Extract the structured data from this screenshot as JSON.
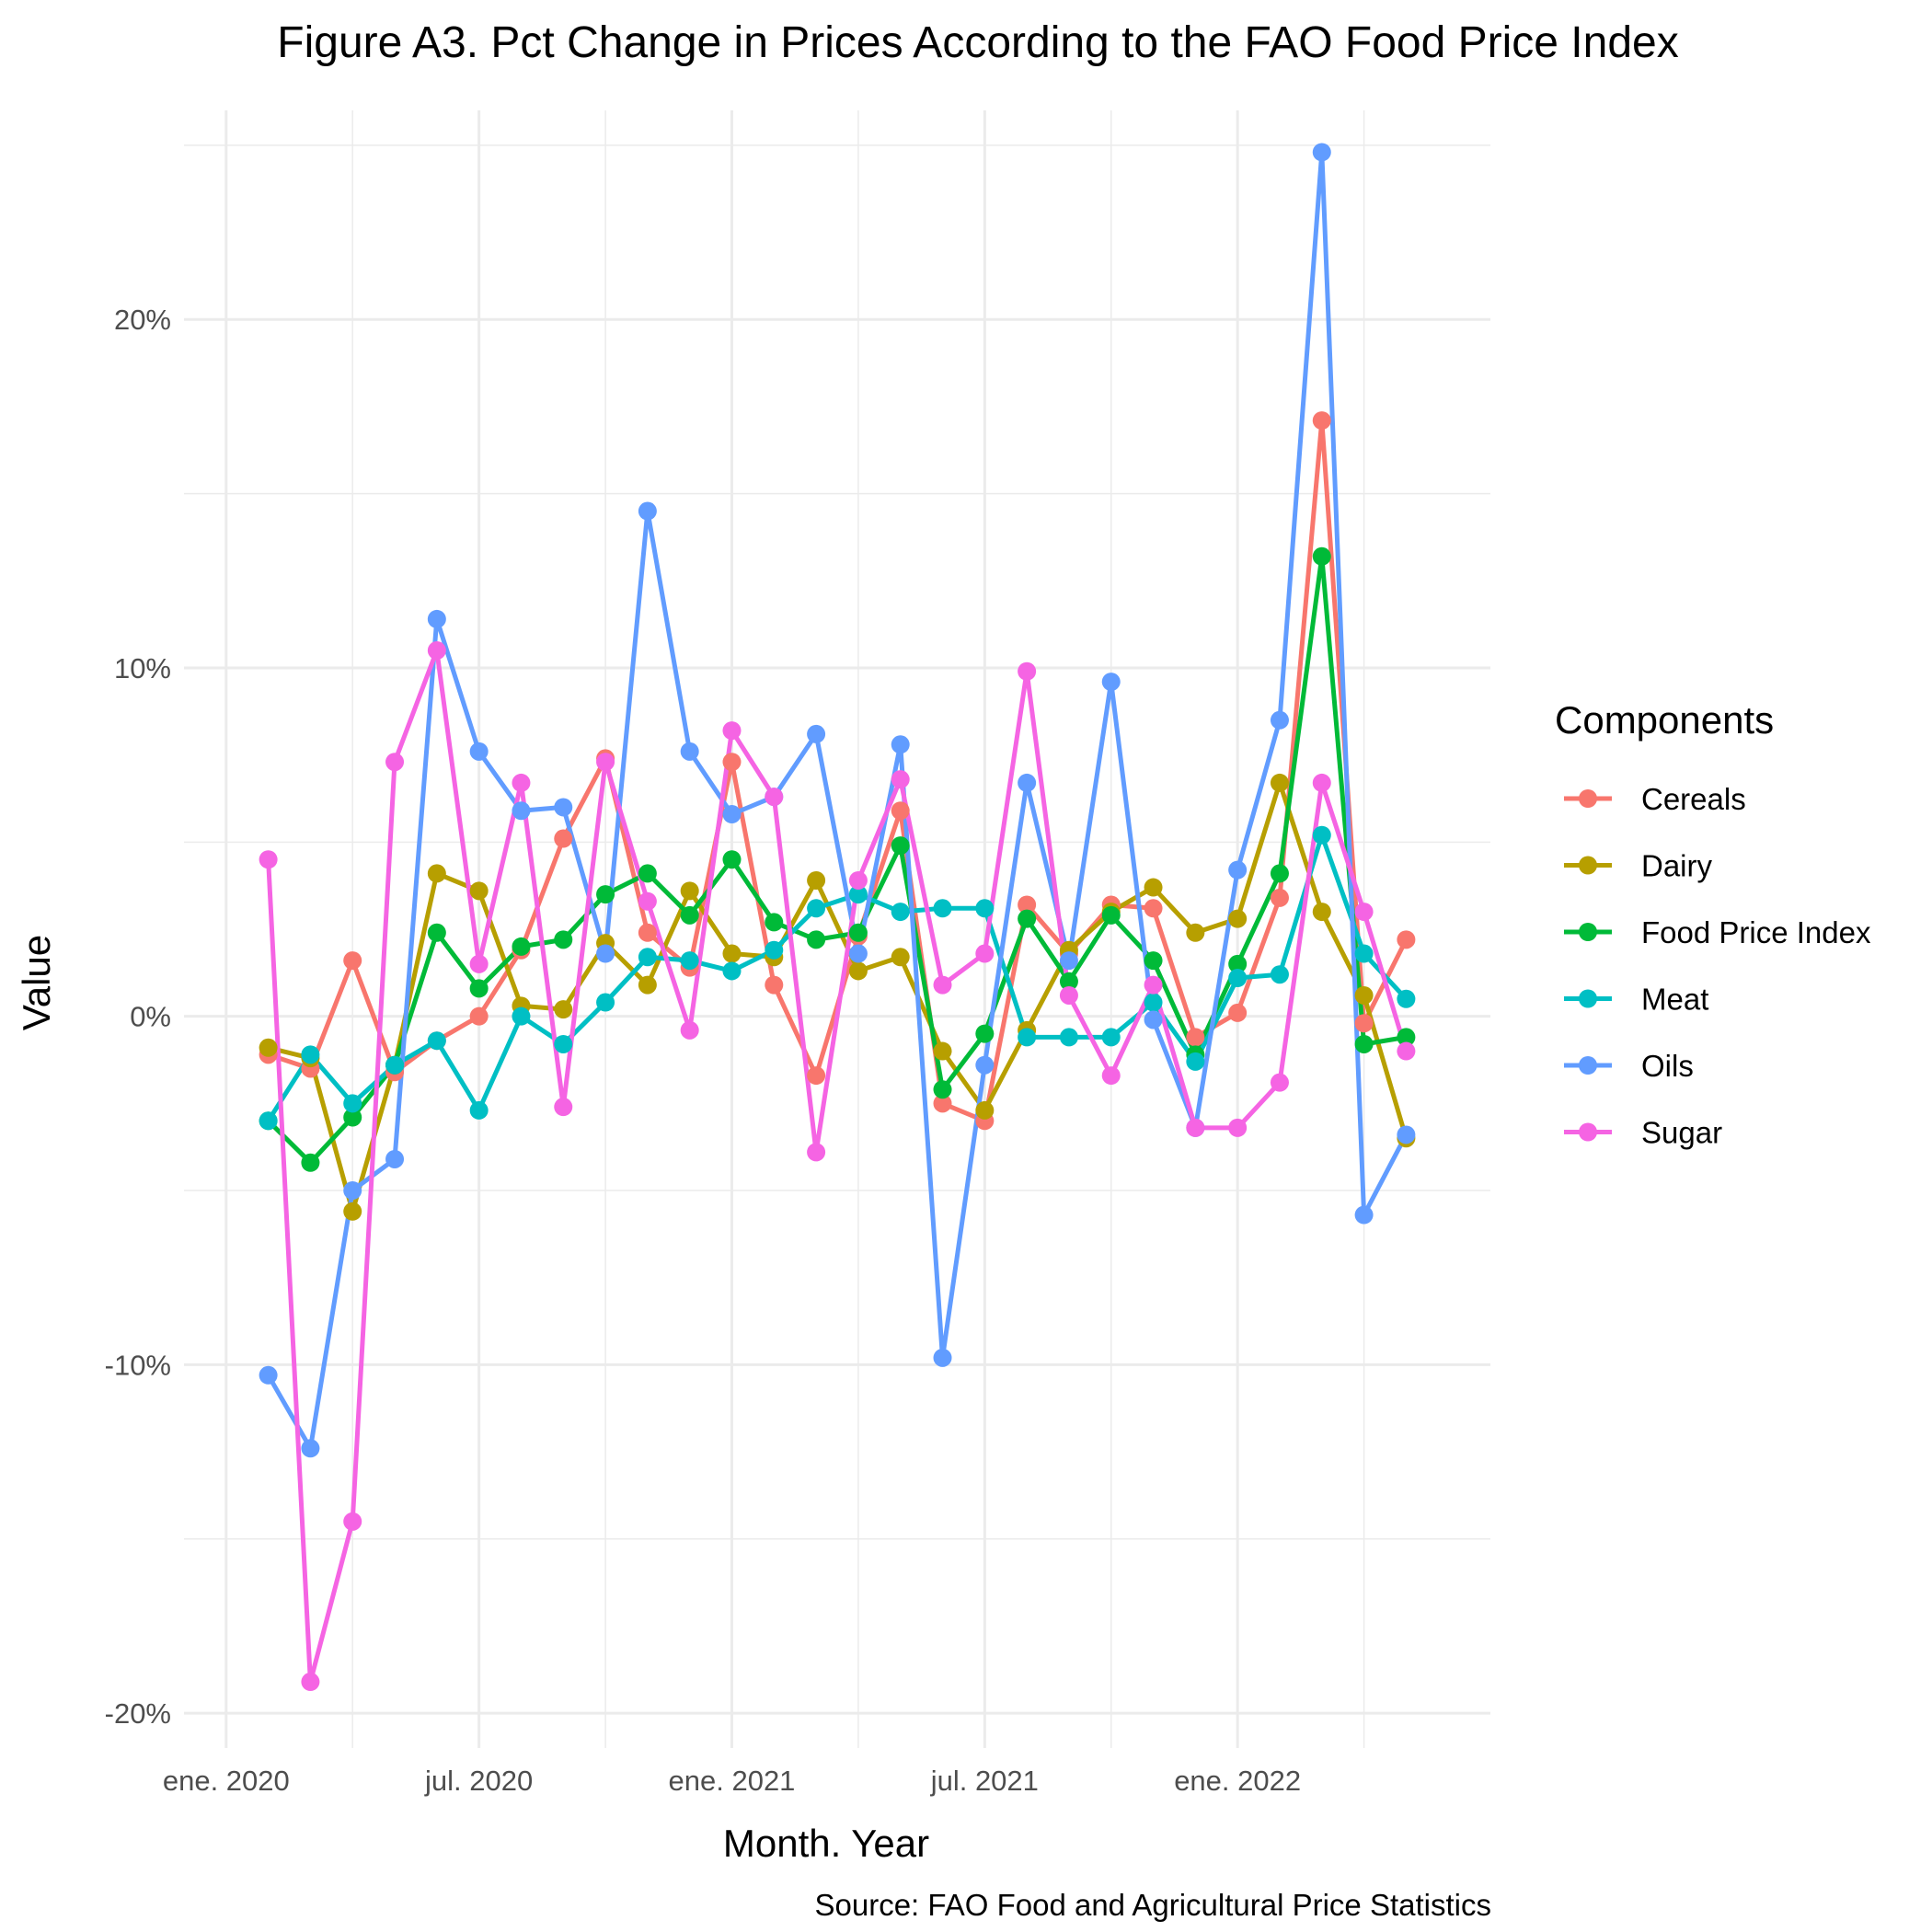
{
  "chart_data": {
    "type": "line",
    "title": "Figure A3. Pct Change in Prices According to the FAO Food Price Index",
    "xlabel": "Month. Year",
    "ylabel": "Value",
    "caption": "Source: FAO Food and Agricultural Price Statistics",
    "legend_title": "Components",
    "legend_position": "right",
    "grid": true,
    "x_tick_labels": [
      "ene. 2020",
      "jul. 2020",
      "ene. 2021",
      "jul. 2021",
      "ene. 2022"
    ],
    "x_tick_dates": [
      "2020-01-01",
      "2020-07-01",
      "2021-01-01",
      "2021-07-01",
      "2022-01-01"
    ],
    "xlim": [
      "2019-12-01",
      "2022-07-01"
    ],
    "y_tick_labels": [
      "-20%",
      "-10%",
      "0%",
      "10%",
      "20%"
    ],
    "y_ticks": [
      -20,
      -10,
      0,
      10,
      20
    ],
    "ylim": [
      -21,
      26
    ],
    "x": [
      "2020-02",
      "2020-03",
      "2020-04",
      "2020-05",
      "2020-06",
      "2020-07",
      "2020-08",
      "2020-09",
      "2020-10",
      "2020-11",
      "2020-12",
      "2021-01",
      "2021-02",
      "2021-03",
      "2021-04",
      "2021-05",
      "2021-06",
      "2021-07",
      "2021-08",
      "2021-09",
      "2021-10",
      "2021-11",
      "2021-12",
      "2022-01",
      "2022-02",
      "2022-03",
      "2022-04",
      "2022-05"
    ],
    "series": [
      {
        "name": "Cereals",
        "color": "#F8766D",
        "values": [
          -1.1,
          -1.5,
          1.6,
          -1.6,
          -0.7,
          0.0,
          1.9,
          5.1,
          7.4,
          2.4,
          1.4,
          7.3,
          0.9,
          -1.7,
          2.3,
          5.9,
          -2.5,
          -3.0,
          3.2,
          1.8,
          3.2,
          3.1,
          -0.6,
          0.1,
          3.4,
          17.1,
          -0.2,
          2.2
        ]
      },
      {
        "name": "Dairy",
        "color": "#B79F00",
        "values": [
          -0.9,
          -1.2,
          -5.6,
          -1.4,
          4.1,
          3.6,
          0.3,
          0.2,
          2.1,
          0.9,
          3.6,
          1.8,
          1.7,
          3.9,
          1.3,
          1.7,
          -1.0,
          -2.7,
          -0.4,
          1.9,
          3.0,
          3.7,
          2.4,
          2.8,
          6.7,
          3.0,
          0.6,
          -3.5
        ]
      },
      {
        "name": "Food Price Index",
        "color": "#00BA38",
        "values": [
          -3.0,
          -4.2,
          -2.9,
          -1.4,
          2.4,
          0.8,
          2.0,
          2.2,
          3.5,
          4.1,
          2.9,
          4.5,
          2.7,
          2.2,
          2.4,
          4.9,
          -2.1,
          -0.5,
          2.8,
          1.0,
          2.9,
          1.6,
          -1.1,
          1.5,
          4.1,
          13.2,
          -0.8,
          -0.6
        ]
      },
      {
        "name": "Meat",
        "color": "#00BFC4",
        "values": [
          -3.0,
          -1.1,
          -2.5,
          -1.4,
          -0.7,
          -2.7,
          0.0,
          -0.8,
          0.4,
          1.7,
          1.6,
          1.3,
          1.9,
          3.1,
          3.5,
          3.0,
          3.1,
          3.1,
          -0.6,
          -0.6,
          -0.6,
          0.4,
          -1.3,
          1.1,
          1.2,
          5.2,
          1.8,
          0.5
        ]
      },
      {
        "name": "Oils",
        "color": "#619CFF",
        "values": [
          -10.3,
          -12.4,
          -5.0,
          -4.1,
          11.4,
          7.6,
          5.9,
          6.0,
          1.8,
          14.5,
          7.6,
          5.8,
          6.3,
          8.1,
          1.8,
          7.8,
          -9.8,
          -1.4,
          6.7,
          1.6,
          9.6,
          -0.1,
          -3.2,
          4.2,
          8.5,
          24.8,
          -5.7,
          -3.4
        ]
      },
      {
        "name": "Sugar",
        "color": "#F564E3",
        "values": [
          4.5,
          -19.1,
          -14.5,
          7.3,
          10.5,
          1.5,
          6.7,
          -2.6,
          7.3,
          3.3,
          -0.4,
          8.2,
          6.3,
          -3.9,
          3.9,
          6.8,
          0.9,
          1.8,
          9.9,
          0.6,
          -1.7,
          0.9,
          -3.2,
          -3.2,
          -1.9,
          6.7,
          3.0,
          -1.0
        ]
      }
    ]
  }
}
